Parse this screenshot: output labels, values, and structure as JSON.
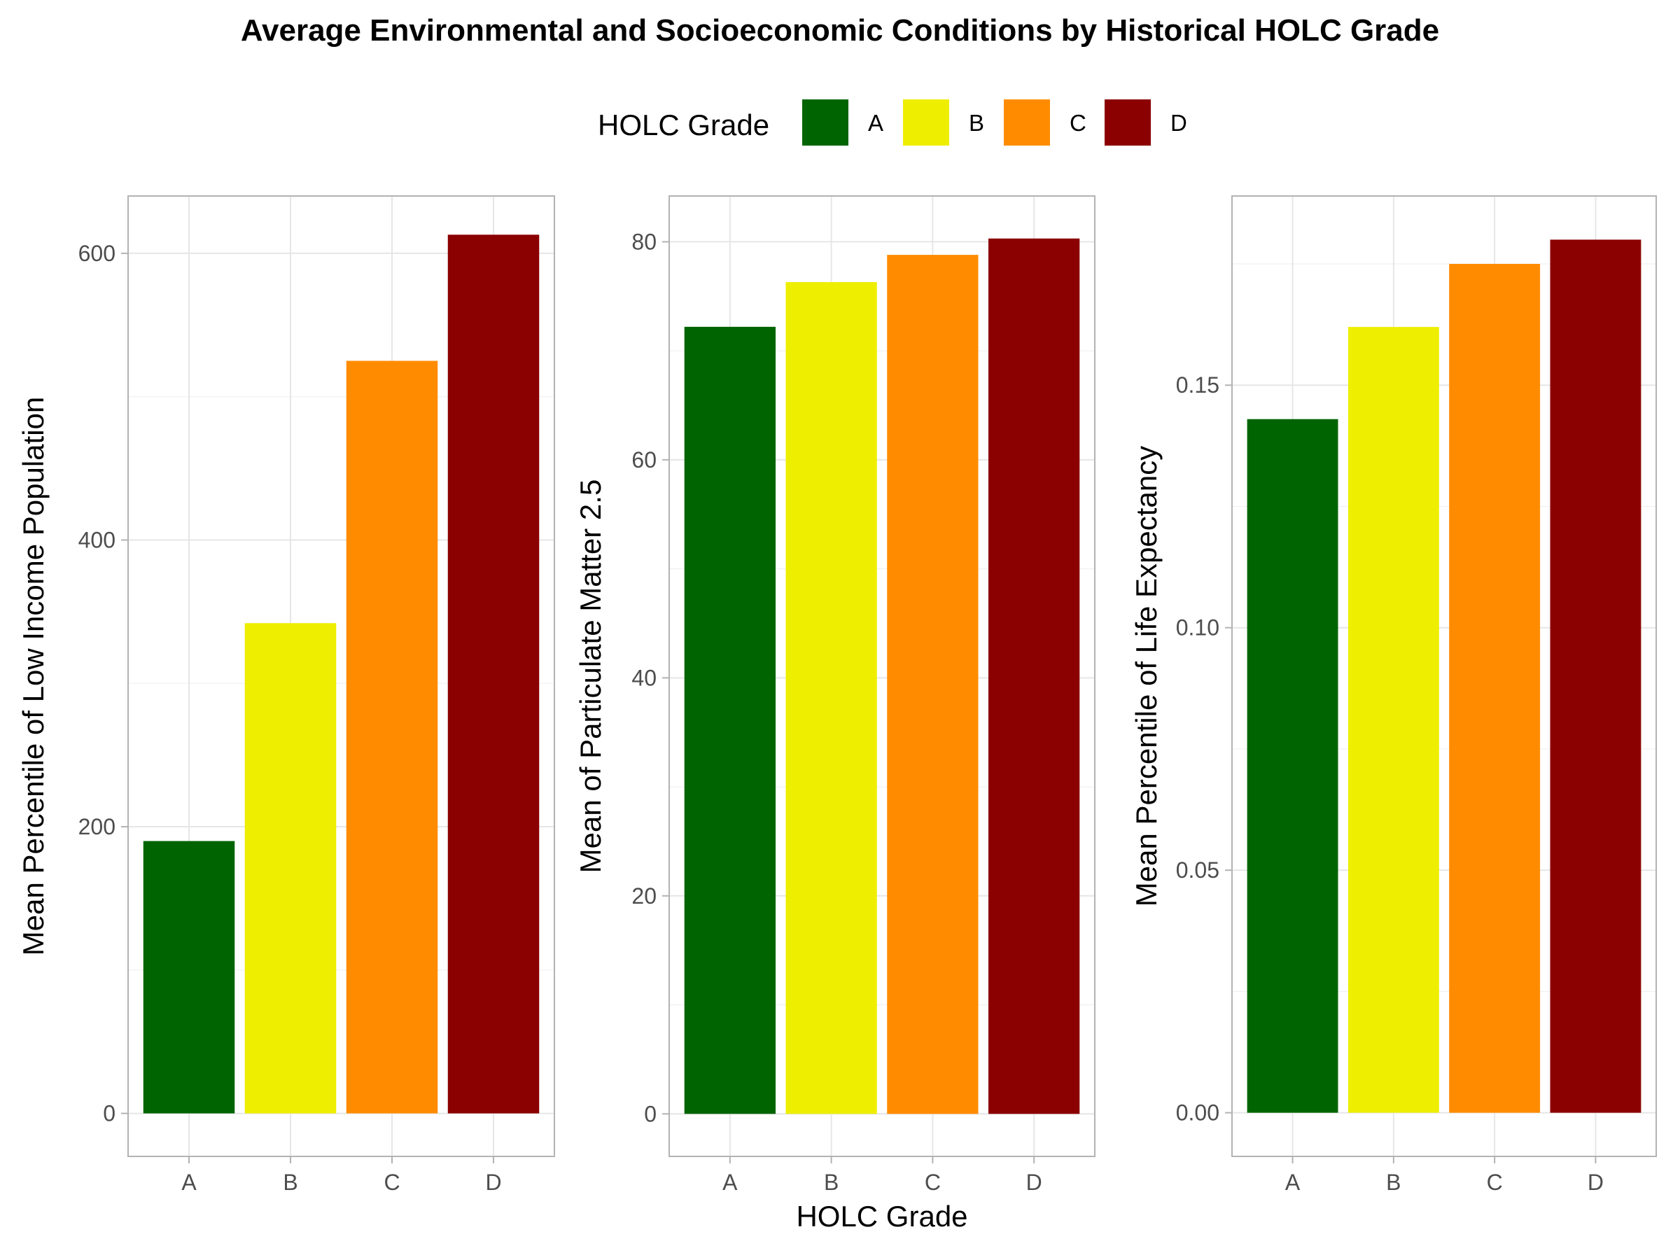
{
  "title": "Average Environmental and Socioeconomic Conditions by Historical HOLC Grade",
  "legend": {
    "title": "HOLC Grade",
    "entries": [
      {
        "label": "A",
        "color": "#006400"
      },
      {
        "label": "B",
        "color": "#EEEE00"
      },
      {
        "label": "C",
        "color": "#FF8C00"
      },
      {
        "label": "D",
        "color": "#8B0000"
      }
    ],
    "placement": "top"
  },
  "shared_xlabel": "HOLC Grade",
  "chart_data": [
    {
      "type": "bar",
      "categories": [
        "A",
        "B",
        "C",
        "D"
      ],
      "values": [
        190,
        342,
        525,
        613
      ],
      "ylabel": "Mean Percentile of Low Income Population",
      "ylim": [
        -30,
        640
      ],
      "yticks": [
        0,
        200,
        400,
        600
      ],
      "ytick_labels": [
        "0",
        "200",
        "400",
        "600"
      ],
      "grid": true
    },
    {
      "type": "bar",
      "categories": [
        "A",
        "B",
        "C",
        "D"
      ],
      "values": [
        72.2,
        76.3,
        78.8,
        80.3
      ],
      "ylabel": "Mean of Particulate Matter 2.5",
      "ylim": [
        -3.9,
        84.2
      ],
      "yticks": [
        0,
        20,
        40,
        60,
        80
      ],
      "ytick_labels": [
        "0",
        "20",
        "40",
        "60",
        "80"
      ],
      "grid": true
    },
    {
      "type": "bar",
      "categories": [
        "A",
        "B",
        "C",
        "D"
      ],
      "values": [
        0.143,
        0.162,
        0.175,
        0.18
      ],
      "ylabel": "Mean Percentile of Life Expectancy",
      "ylim": [
        -0.009,
        0.189
      ],
      "yticks": [
        0,
        0.05,
        0.1,
        0.15
      ],
      "ytick_labels": [
        "0.00",
        "0.05",
        "0.10",
        "0.15"
      ],
      "grid": true
    }
  ]
}
